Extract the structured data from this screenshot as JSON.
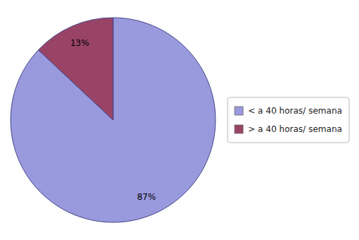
{
  "chart_data": {
    "type": "pie",
    "categories": [
      "< a 40 horas/ semana",
      "> a 40 horas/ semana"
    ],
    "values": [
      87,
      13
    ],
    "value_labels": [
      "87%",
      "13%"
    ],
    "colors": [
      "#9999dd",
      "#994466"
    ],
    "data_labels": true,
    "legend": "right"
  }
}
